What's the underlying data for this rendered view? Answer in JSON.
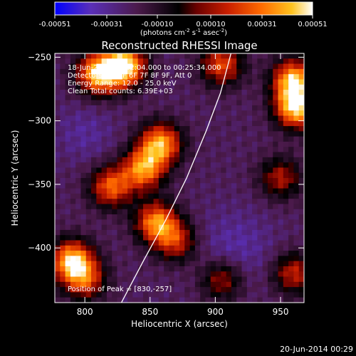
{
  "colorbar": {
    "ticks": [
      "-0.00051",
      "-0.00031",
      "-0.00010",
      "0.00010",
      "0.00031",
      "0.00051"
    ],
    "tick_values": [
      -0.00051,
      -0.00031,
      -0.0001,
      0.0001,
      0.00031,
      0.00051
    ],
    "unit_prefix": "(photons cm",
    "unit_sup1": "-2",
    "unit_mid1": " s",
    "unit_sup2": "-1",
    "unit_mid2": " asec",
    "unit_sup3": "-2",
    "unit_suffix": ")",
    "colors": [
      "#0000ff",
      "#5a2fb8",
      "#4b1a4b",
      "#000000",
      "#6a0000",
      "#c81e00",
      "#ff6a00",
      "#ffc31f",
      "#ffffff"
    ]
  },
  "chart_data": {
    "type": "heatmap",
    "title": "Reconstructed RHESSI Image",
    "xlabel": "Heliocentric X (arcsec)",
    "ylabel": "Heliocentric Y (arcsec)",
    "xlim": [
      777,
      968
    ],
    "ylim": [
      -443,
      -247
    ],
    "x_ticks": [
      800,
      850,
      900,
      950
    ],
    "y_ticks": [
      -250,
      -300,
      -350,
      -400
    ],
    "info_lines": [
      "18-Jun-2014 00:22:04.000 to 00:25:34.000",
      "Detectors: 3F 5F 6F 7F 8F 9F, Att 0",
      "Energy Range: 12.0 - 25.0 keV",
      "Clean   Total counts: 6.39E+03"
    ],
    "peak_label": "Position of Peak = [830,-257]",
    "peak": [
      830,
      -257
    ],
    "limb_curve": [
      [
        828,
        -443
      ],
      [
        845,
        -410
      ],
      [
        862,
        -378
      ],
      [
        878,
        -345
      ],
      [
        893,
        -308
      ],
      [
        904,
        -278
      ],
      [
        912,
        -247
      ]
    ],
    "sources": [
      {
        "x": 830,
        "y": -257,
        "amp": 1.0
      },
      {
        "x": 810,
        "y": -263,
        "amp": 0.85
      },
      {
        "x": 905,
        "y": -256,
        "amp": 0.6
      },
      {
        "x": 960,
        "y": -268,
        "amp": 0.85
      },
      {
        "x": 962,
        "y": -290,
        "amp": 0.9
      },
      {
        "x": 858,
        "y": -318,
        "amp": 0.8
      },
      {
        "x": 845,
        "y": -338,
        "amp": 0.75
      },
      {
        "x": 820,
        "y": -352,
        "amp": 0.65
      },
      {
        "x": 855,
        "y": -380,
        "amp": 0.75
      },
      {
        "x": 870,
        "y": -395,
        "amp": 0.5
      },
      {
        "x": 790,
        "y": -410,
        "amp": 0.85
      },
      {
        "x": 800,
        "y": -425,
        "amp": 0.55
      },
      {
        "x": 950,
        "y": -345,
        "amp": 0.45
      },
      {
        "x": 905,
        "y": -425,
        "amp": 0.45
      },
      {
        "x": 960,
        "y": -420,
        "amp": 0.5
      }
    ]
  },
  "footer": {
    "timestamp": "20-Jun-2014 00:29"
  }
}
